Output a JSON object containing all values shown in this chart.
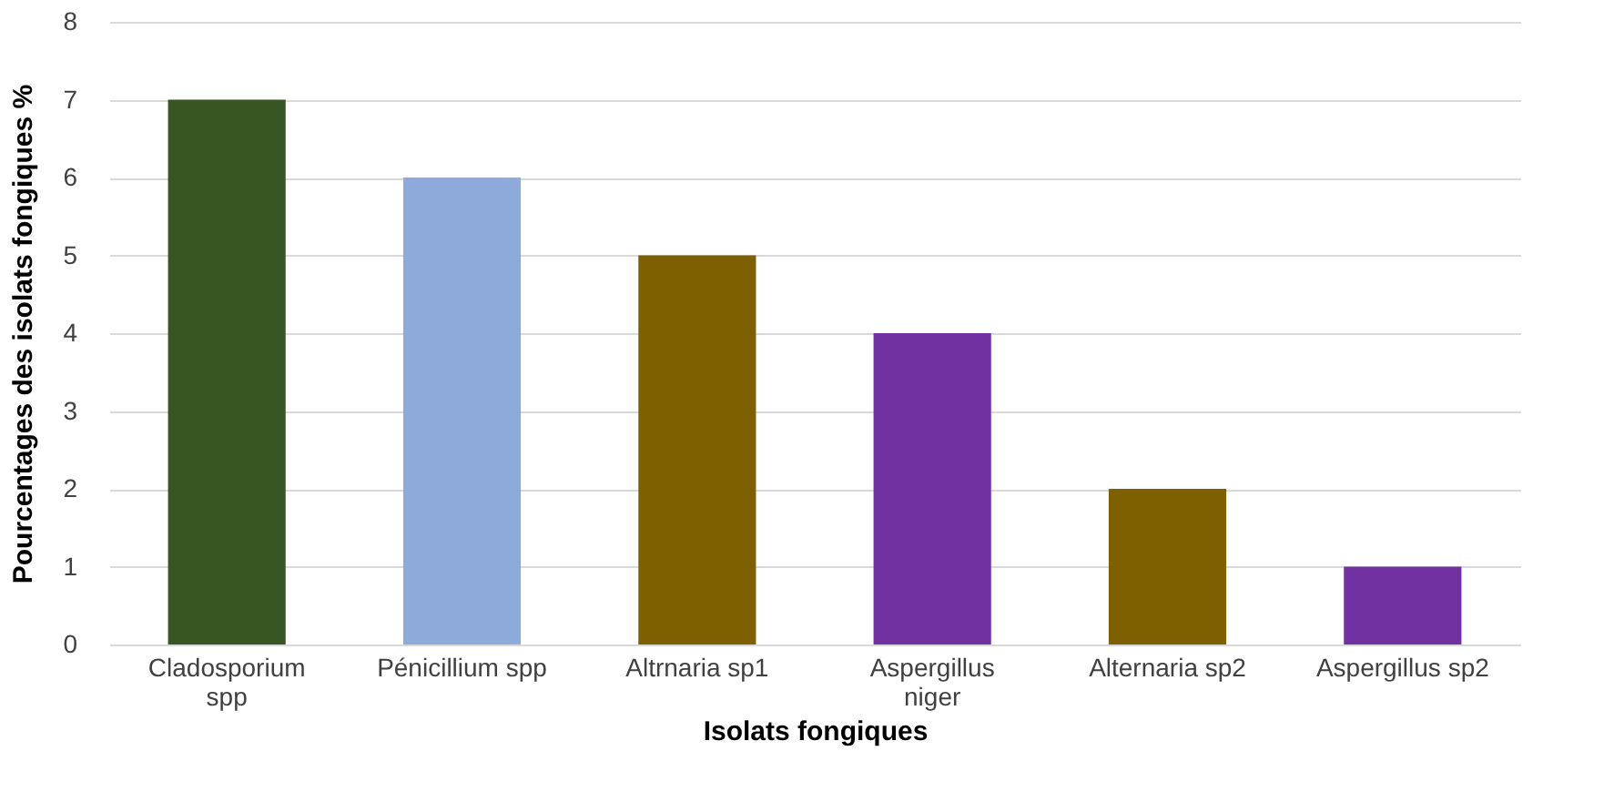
{
  "chart_data": {
    "type": "bar",
    "xlabel": "Isolats fongiques",
    "ylabel": "Pourcentages des isolats fongiques %",
    "categories": [
      "Cladosporium spp",
      "Pénicillium spp",
      "Altrnaria sp1",
      "Aspergillus niger",
      "Alternaria sp2",
      "Aspergillus sp2"
    ],
    "values": [
      7,
      6,
      5,
      4,
      2,
      1
    ],
    "colors": [
      "#375623",
      "#8eaadb",
      "#7f6000",
      "#7030a0",
      "#7f6000",
      "#7030a0"
    ],
    "ylim": [
      0,
      8
    ],
    "yticks": [
      0,
      1,
      2,
      3,
      4,
      5,
      6,
      7,
      8
    ],
    "grid": "y",
    "legend": false
  }
}
